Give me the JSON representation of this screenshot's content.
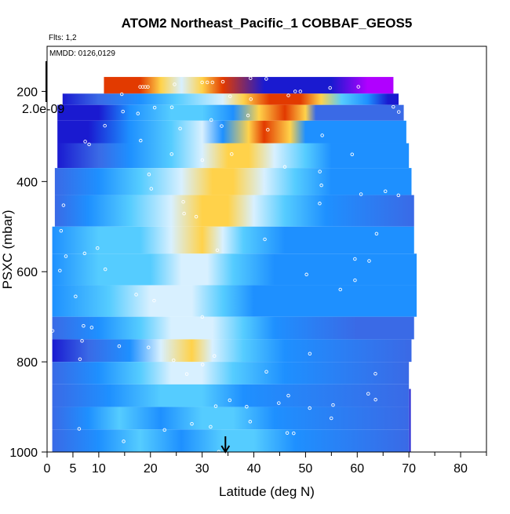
{
  "chart_data": {
    "type": "heatmap",
    "title": "ATOM2 Northeast_Pacific_1 COBBAF_GEOS5",
    "flights_label": "Flts: 1,2",
    "dates_label": "MMDD: 0126,0129",
    "scale_label": "2.0e-09",
    "xlabel": "Latitude (deg N)",
    "ylabel": "PSXC (mbar)",
    "xlim": [
      0,
      85
    ],
    "ylim": [
      1000,
      100
    ],
    "x_ticks": [
      "0",
      "5",
      "10",
      "20",
      "30",
      "40",
      "50",
      "60",
      "70",
      "80"
    ],
    "y_ticks": [
      "200",
      "400",
      "600",
      "800",
      "1000"
    ],
    "marker_latitude": 34.5,
    "grid": false,
    "legend": "none",
    "colors": {
      "very_low": "#1a1ad0",
      "low": "#3a6ae6",
      "mid_low": "#1e90ff",
      "mid": "#55ccff",
      "pale": "#d8f0ff",
      "high": "#ffd24a",
      "very_high": "#e23a00",
      "max": "#b000ff"
    }
  }
}
